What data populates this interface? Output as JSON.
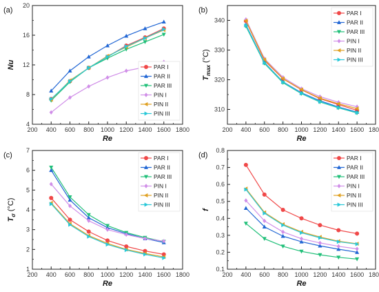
{
  "chart_data": [
    {
      "type": "line",
      "panel_label": "(a)",
      "xlabel": "Re",
      "ylabel": "Nu",
      "xlim": [
        200,
        1800
      ],
      "ylim": [
        4,
        20
      ],
      "xticks": [
        200,
        400,
        600,
        800,
        1000,
        1200,
        1400,
        1600,
        1800
      ],
      "yticks": [
        4,
        8,
        12,
        16,
        20
      ],
      "legend": "bottom-right",
      "x": [
        400,
        600,
        800,
        1000,
        1200,
        1400,
        1600
      ],
      "series": [
        {
          "name": "PAR I",
          "values": [
            7.4,
            9.8,
            11.6,
            13.1,
            14.6,
            15.7,
            16.9
          ]
        },
        {
          "name": "PAR II",
          "values": [
            8.5,
            11.2,
            13.1,
            14.6,
            15.9,
            16.9,
            17.8
          ]
        },
        {
          "name": "PAR III",
          "values": [
            7.2,
            9.7,
            11.6,
            12.9,
            14.1,
            15.1,
            16.1
          ]
        },
        {
          "name": "PIN I",
          "values": [
            5.6,
            7.6,
            9.1,
            10.3,
            11.2,
            11.7,
            12.4
          ]
        },
        {
          "name": "PIN II",
          "values": [
            7.3,
            9.9,
            11.6,
            13.2,
            14.4,
            15.6,
            16.7
          ]
        },
        {
          "name": "PIN III",
          "values": [
            7.4,
            9.8,
            11.6,
            13.1,
            14.5,
            15.6,
            16.8
          ]
        }
      ]
    },
    {
      "type": "line",
      "panel_label": "(b)",
      "xlabel": "Re",
      "ylabel": "T",
      "ylabel_sub": "max",
      "ylabel_unit": " (°C)",
      "xlim": [
        200,
        1800
      ],
      "ylim": [
        305,
        345
      ],
      "xticks": [
        200,
        400,
        600,
        800,
        1000,
        1200,
        1400,
        1600,
        1800
      ],
      "yticks": [
        310,
        320,
        330,
        340
      ],
      "legend": "top-right",
      "x": [
        400,
        600,
        800,
        1000,
        1200,
        1400,
        1600
      ],
      "series": [
        {
          "name": "PAR I",
          "values": [
            339.8,
            326.5,
            320.3,
            316.6,
            313.6,
            311.6,
            309.7
          ]
        },
        {
          "name": "PAR II",
          "values": [
            338.5,
            325.8,
            319.3,
            315.6,
            312.9,
            310.8,
            309.1
          ]
        },
        {
          "name": "PAR III",
          "values": [
            338.0,
            325.5,
            319.0,
            315.3,
            312.5,
            310.5,
            308.8
          ]
        },
        {
          "name": "PIN I",
          "values": [
            340.3,
            327.1,
            320.8,
            317.0,
            314.3,
            312.4,
            310.9
          ]
        },
        {
          "name": "PIN II",
          "values": [
            339.9,
            326.8,
            320.4,
            316.7,
            313.8,
            311.9,
            310.3
          ]
        },
        {
          "name": "PIN III",
          "values": [
            338.3,
            325.7,
            319.2,
            315.4,
            312.6,
            310.6,
            308.9
          ]
        }
      ]
    },
    {
      "type": "line",
      "panel_label": "(c)",
      "xlabel": "Re",
      "ylabel": "T",
      "ylabel_sub": "σ",
      "ylabel_unit": " (°C)",
      "xlim": [
        200,
        1800
      ],
      "ylim": [
        1,
        7
      ],
      "xticks": [
        200,
        400,
        600,
        800,
        1000,
        1200,
        1400,
        1600,
        1800
      ],
      "yticks": [
        1,
        2,
        3,
        4,
        5,
        6,
        7
      ],
      "legend": "top-right",
      "x": [
        400,
        600,
        800,
        1000,
        1200,
        1400,
        1600
      ],
      "series": [
        {
          "name": "PAR I",
          "values": [
            4.6,
            3.5,
            2.9,
            2.45,
            2.15,
            1.92,
            1.75
          ]
        },
        {
          "name": "PAR II",
          "values": [
            6.0,
            4.5,
            3.6,
            3.1,
            2.8,
            2.55,
            2.35
          ]
        },
        {
          "name": "PAR III",
          "values": [
            6.15,
            4.65,
            3.75,
            3.2,
            2.85,
            2.6,
            2.4
          ]
        },
        {
          "name": "PIN I",
          "values": [
            5.3,
            4.2,
            3.45,
            3.0,
            2.75,
            2.55,
            2.42
          ]
        },
        {
          "name": "PIN II",
          "values": [
            4.35,
            3.3,
            2.7,
            2.3,
            2.0,
            1.8,
            1.62
          ]
        },
        {
          "name": "PIN III",
          "values": [
            4.3,
            3.25,
            2.65,
            2.25,
            1.97,
            1.75,
            1.57
          ]
        }
      ]
    },
    {
      "type": "line",
      "panel_label": "(d)",
      "xlabel": "Re",
      "ylabel": "f",
      "xlim": [
        200,
        1800
      ],
      "ylim": [
        0.1,
        0.8
      ],
      "xticks": [
        200,
        400,
        600,
        800,
        1000,
        1200,
        1400,
        1600,
        1800
      ],
      "yticks": [
        0.1,
        0.2,
        0.3,
        0.4,
        0.5,
        0.6,
        0.7,
        0.8
      ],
      "legend": "top-right",
      "x": [
        400,
        600,
        800,
        1000,
        1200,
        1400,
        1600
      ],
      "series": [
        {
          "name": "PAR I",
          "values": [
            0.715,
            0.54,
            0.45,
            0.4,
            0.36,
            0.33,
            0.31
          ]
        },
        {
          "name": "PAR II",
          "values": [
            0.46,
            0.35,
            0.295,
            0.262,
            0.238,
            0.218,
            0.2
          ]
        },
        {
          "name": "PAR III",
          "values": [
            0.37,
            0.28,
            0.235,
            0.205,
            0.185,
            0.17,
            0.16
          ]
        },
        {
          "name": "PIN I",
          "values": [
            0.505,
            0.385,
            0.32,
            0.28,
            0.255,
            0.235,
            0.22
          ]
        },
        {
          "name": "PIN II",
          "values": [
            0.575,
            0.435,
            0.365,
            0.32,
            0.29,
            0.265,
            0.25
          ]
        },
        {
          "name": "PIN III",
          "values": [
            0.57,
            0.43,
            0.36,
            0.315,
            0.285,
            0.262,
            0.248
          ]
        }
      ]
    }
  ],
  "style": {
    "series_colors": [
      "#f04848",
      "#2166d4",
      "#1fbf78",
      "#d08ee8",
      "#e0a020",
      "#28c8d8"
    ],
    "series_markers": [
      "circle",
      "triangle-up",
      "triangle-down",
      "diamond",
      "triangle-left",
      "triangle-right"
    ]
  }
}
